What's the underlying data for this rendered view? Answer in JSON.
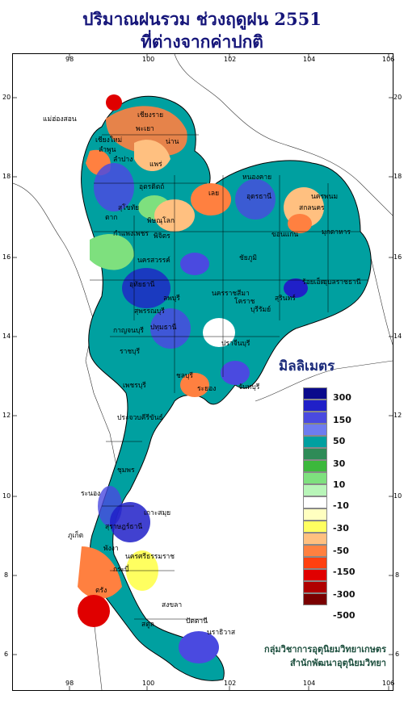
{
  "header": {
    "title_line1": "ปริมาณฝนรวม ช่วงฤดูฝน 2551",
    "title_line2": "ที่ต่างจากค่าปกติ"
  },
  "axes": {
    "longitude_ticks": [
      "98",
      "100",
      "102",
      "104",
      "106"
    ],
    "latitude_ticks": [
      "20",
      "18",
      "16",
      "14",
      "12",
      "10",
      "8",
      "6"
    ]
  },
  "legend": {
    "title": "มิลลิเมตร",
    "labels": [
      "300",
      "150",
      "50",
      "30",
      "10",
      "-10",
      "-30",
      "-50",
      "-150",
      "-300",
      "-500"
    ],
    "colors": [
      "#0a0a8c",
      "#2020c8",
      "#4a4ae0",
      "#6e7cf0",
      "#00a0a0",
      "#2e8b57",
      "#3cb83c",
      "#7ee07e",
      "#b8f5b8",
      "#ffffff",
      "#ffffc0",
      "#ffff60",
      "#ffc080",
      "#ff8040",
      "#ff4010",
      "#e00000",
      "#b00000",
      "#7a0000"
    ]
  },
  "credit": {
    "line1": "กลุ่มวิชาการอุตุนิยมวิทยาเกษตร",
    "line2": "สำนักพัฒนาอุตุนิยมวิทยา"
  },
  "cities": [
    {
      "name": "เชียงราย"
    },
    {
      "name": "แม่ฮ่องสอน"
    },
    {
      "name": "พะเยา"
    },
    {
      "name": "เชียงใหม่"
    },
    {
      "name": "ลำพูน"
    },
    {
      "name": "น่าน"
    },
    {
      "name": "ลำปาง"
    },
    {
      "name": "แพร่"
    },
    {
      "name": "อุตรดิตถ์"
    },
    {
      "name": "ตาก"
    },
    {
      "name": "สุโขทัย"
    },
    {
      "name": "พิษณุโลก"
    },
    {
      "name": "เลย"
    },
    {
      "name": "หนองคาย"
    },
    {
      "name": "อุดรธานี"
    },
    {
      "name": "นครพนม"
    },
    {
      "name": "สกลนคร"
    },
    {
      "name": "มุกดาหาร"
    },
    {
      "name": "ขอนแก่น"
    },
    {
      "name": "ชัยภูมิ"
    },
    {
      "name": "กำแพงเพชร"
    },
    {
      "name": "พิจิตร"
    },
    {
      "name": "นครสวรรค์"
    },
    {
      "name": "อุทัยธานี"
    },
    {
      "name": "ลพบุรี"
    },
    {
      "name": "สุพรรณบุรี"
    },
    {
      "name": "นครราชสีมา"
    },
    {
      "name": "ร้อยเอ็ด"
    },
    {
      "name": "อุบลราชธานี"
    },
    {
      "name": "สุรินทร์"
    },
    {
      "name": "โคราช"
    },
    {
      "name": "บุรีรัมย์"
    },
    {
      "name": "กาญจนบุรี"
    },
    {
      "name": "ปทุมธานี"
    },
    {
      "name": "ราชบุรี"
    },
    {
      "name": "ปราจีนบุรี"
    },
    {
      "name": "เพชรบุรี"
    },
    {
      "name": "ชลบุรี"
    },
    {
      "name": "ระยอง"
    },
    {
      "name": "จันทบุรี"
    },
    {
      "name": "ประจวบคีรีขันธ์"
    },
    {
      "name": "ชุมพร"
    },
    {
      "name": "ระนอง"
    },
    {
      "name": "เกาะสมุย"
    },
    {
      "name": "สุราษฎร์ธานี"
    },
    {
      "name": "ภูเก็ต"
    },
    {
      "name": "พังงา"
    },
    {
      "name": "นครศรีธรรมราช"
    },
    {
      "name": "กระบี่"
    },
    {
      "name": "ตรัง"
    },
    {
      "name": "สงขลา"
    },
    {
      "name": "สตูล"
    },
    {
      "name": "ปัตตานี"
    },
    {
      "name": "นราธิวาส"
    }
  ]
}
